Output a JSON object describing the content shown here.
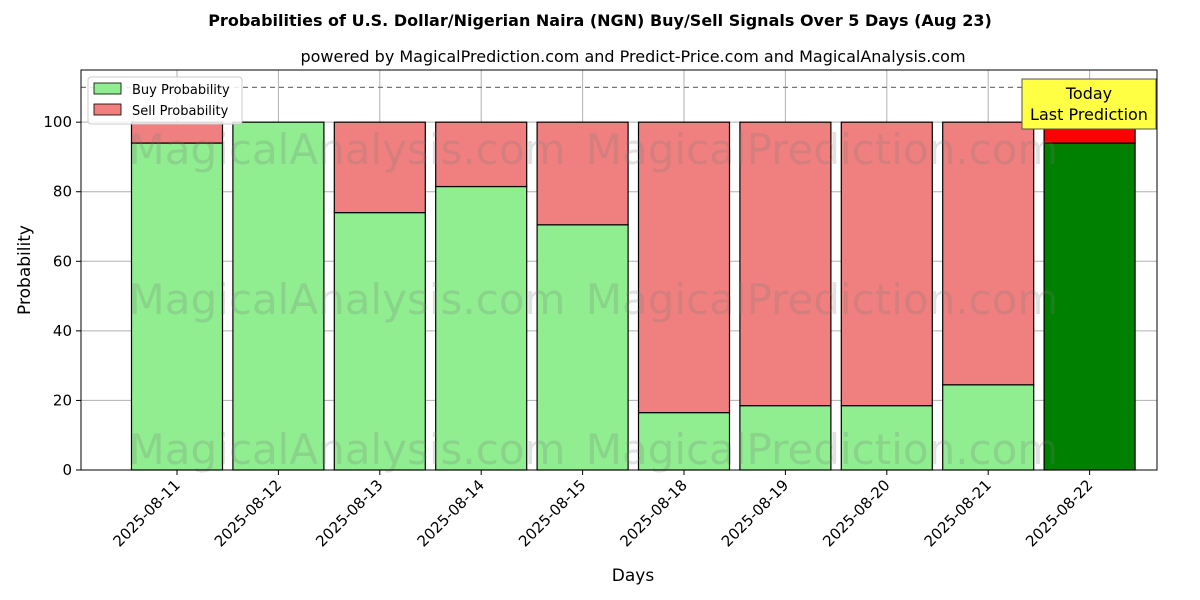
{
  "chart_data": {
    "type": "bar",
    "stacked": true,
    "title": "Probabilities of U.S. Dollar/Nigerian Naira (NGN) Buy/Sell Signals Over 5 Days (Aug 23)",
    "subtitle": "powered by MagicalPrediction.com and Predict-Price.com and MagicalAnalysis.com",
    "xlabel": "Days",
    "ylabel": "Probability",
    "ylim": [
      0,
      115
    ],
    "yticks": [
      0,
      20,
      40,
      60,
      80,
      100
    ],
    "grid": true,
    "legend_position": "top-left",
    "reference_line": 110,
    "categories": [
      "2025-08-11",
      "2025-08-12",
      "2025-08-13",
      "2025-08-14",
      "2025-08-15",
      "2025-08-18",
      "2025-08-19",
      "2025-08-20",
      "2025-08-21",
      "2025-08-22"
    ],
    "series": [
      {
        "name": "Buy Probability",
        "color": "#90ee90",
        "highlight_color": "#008000",
        "values": [
          94,
          100,
          74,
          81.5,
          70.5,
          16.5,
          18.5,
          18.5,
          24.5,
          94
        ]
      },
      {
        "name": "Sell Probability",
        "color": "#f08080",
        "highlight_color": "#ff0000",
        "values": [
          6,
          0,
          26,
          18.5,
          29.5,
          83.5,
          81.5,
          81.5,
          75.5,
          6
        ]
      }
    ],
    "highlight_index": 9,
    "annotation": {
      "line1": "Today",
      "line2": "Last Prediction",
      "background": "#ffff44"
    },
    "watermarks": [
      "MagicalAnalysis.com",
      "MagicalPrediction.com",
      "MagicalAnalysis.com",
      "MagicalPrediction.com",
      "MagicalAnalysis.com",
      "MagicalPrediction.com"
    ]
  }
}
